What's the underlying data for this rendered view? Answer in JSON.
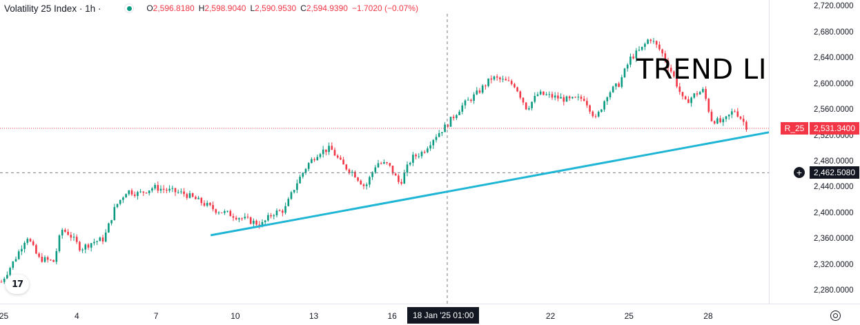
{
  "legend": {
    "symbol": "Volatility 25 Index · 1h ·",
    "more": "▸",
    "ohlc": [
      {
        "key": "O",
        "value": "2,596.8180"
      },
      {
        "key": "H",
        "value": "2,598.9040"
      },
      {
        "key": "L",
        "value": "2,590.9530"
      },
      {
        "key": "C",
        "value": "2,594.9390"
      }
    ],
    "change": "−1.7020 (−0.07%)"
  },
  "colors": {
    "up": "#089981",
    "down": "#f23645",
    "trendline": "#1fb6d6",
    "last_price_line": "#f23645",
    "crosshair": "#787b86"
  },
  "annotation": {
    "text": "TREND LINE"
  },
  "price_scale": {
    "ticks": [
      "2,720.0000",
      "2,680.0000",
      "2,640.0000",
      "2,600.0000",
      "2,560.0000",
      "2,520.0000",
      "2,480.0000",
      "2,440.0000",
      "2,400.0000",
      "2,360.0000",
      "2,320.0000",
      "2,280.0000"
    ],
    "symbol_badge": "R_25",
    "last_price": "2,531.3400",
    "crosshair_price": "2,462.5080",
    "plus_icon": "⊕"
  },
  "time_scale": {
    "ticks": [
      "25",
      "4",
      "7",
      "10",
      "13",
      "16",
      "22",
      "25",
      "28"
    ],
    "crosshair_time": "18 Jan '25   01:00"
  },
  "logo": {
    "text": "17"
  },
  "chart_data": {
    "type": "candlestick",
    "title": "Volatility 25 Index · 1h",
    "ylim": [
      2260,
      2730
    ],
    "last_price": 2531.34,
    "crosshair_price": 2462.508,
    "trendline": {
      "from": [
        0.275,
        2366
      ],
      "to": [
        1.04,
        2534
      ]
    },
    "waypoints": [
      [
        0.0,
        2290
      ],
      [
        0.02,
        2330
      ],
      [
        0.035,
        2365
      ],
      [
        0.05,
        2330
      ],
      [
        0.07,
        2325
      ],
      [
        0.08,
        2375
      ],
      [
        0.09,
        2368
      ],
      [
        0.105,
        2345
      ],
      [
        0.12,
        2355
      ],
      [
        0.135,
        2360
      ],
      [
        0.15,
        2410
      ],
      [
        0.165,
        2435
      ],
      [
        0.18,
        2430
      ],
      [
        0.2,
        2440
      ],
      [
        0.22,
        2435
      ],
      [
        0.24,
        2430
      ],
      [
        0.26,
        2418
      ],
      [
        0.28,
        2405
      ],
      [
        0.3,
        2398
      ],
      [
        0.32,
        2390
      ],
      [
        0.34,
        2382
      ],
      [
        0.355,
        2400
      ],
      [
        0.37,
        2405
      ],
      [
        0.385,
        2445
      ],
      [
        0.4,
        2475
      ],
      [
        0.415,
        2495
      ],
      [
        0.43,
        2500
      ],
      [
        0.445,
        2475
      ],
      [
        0.46,
        2462
      ],
      [
        0.475,
        2440
      ],
      [
        0.49,
        2478
      ],
      [
        0.505,
        2475
      ],
      [
        0.52,
        2445
      ],
      [
        0.535,
        2485
      ],
      [
        0.55,
        2495
      ],
      [
        0.565,
        2518
      ],
      [
        0.58,
        2535
      ],
      [
        0.6,
        2565
      ],
      [
        0.62,
        2585
      ],
      [
        0.64,
        2610
      ],
      [
        0.655,
        2605
      ],
      [
        0.67,
        2598
      ],
      [
        0.685,
        2562
      ],
      [
        0.7,
        2585
      ],
      [
        0.72,
        2580
      ],
      [
        0.74,
        2575
      ],
      [
        0.76,
        2578
      ],
      [
        0.775,
        2545
      ],
      [
        0.79,
        2585
      ],
      [
        0.805,
        2600
      ],
      [
        0.82,
        2640
      ],
      [
        0.835,
        2655
      ],
      [
        0.845,
        2672
      ],
      [
        0.86,
        2650
      ],
      [
        0.875,
        2615
      ],
      [
        0.89,
        2570
      ],
      [
        0.905,
        2585
      ],
      [
        0.915,
        2590
      ],
      [
        0.925,
        2545
      ],
      [
        0.94,
        2540
      ],
      [
        0.955,
        2560
      ],
      [
        0.965,
        2545
      ],
      [
        0.975,
        2526
      ]
    ]
  }
}
